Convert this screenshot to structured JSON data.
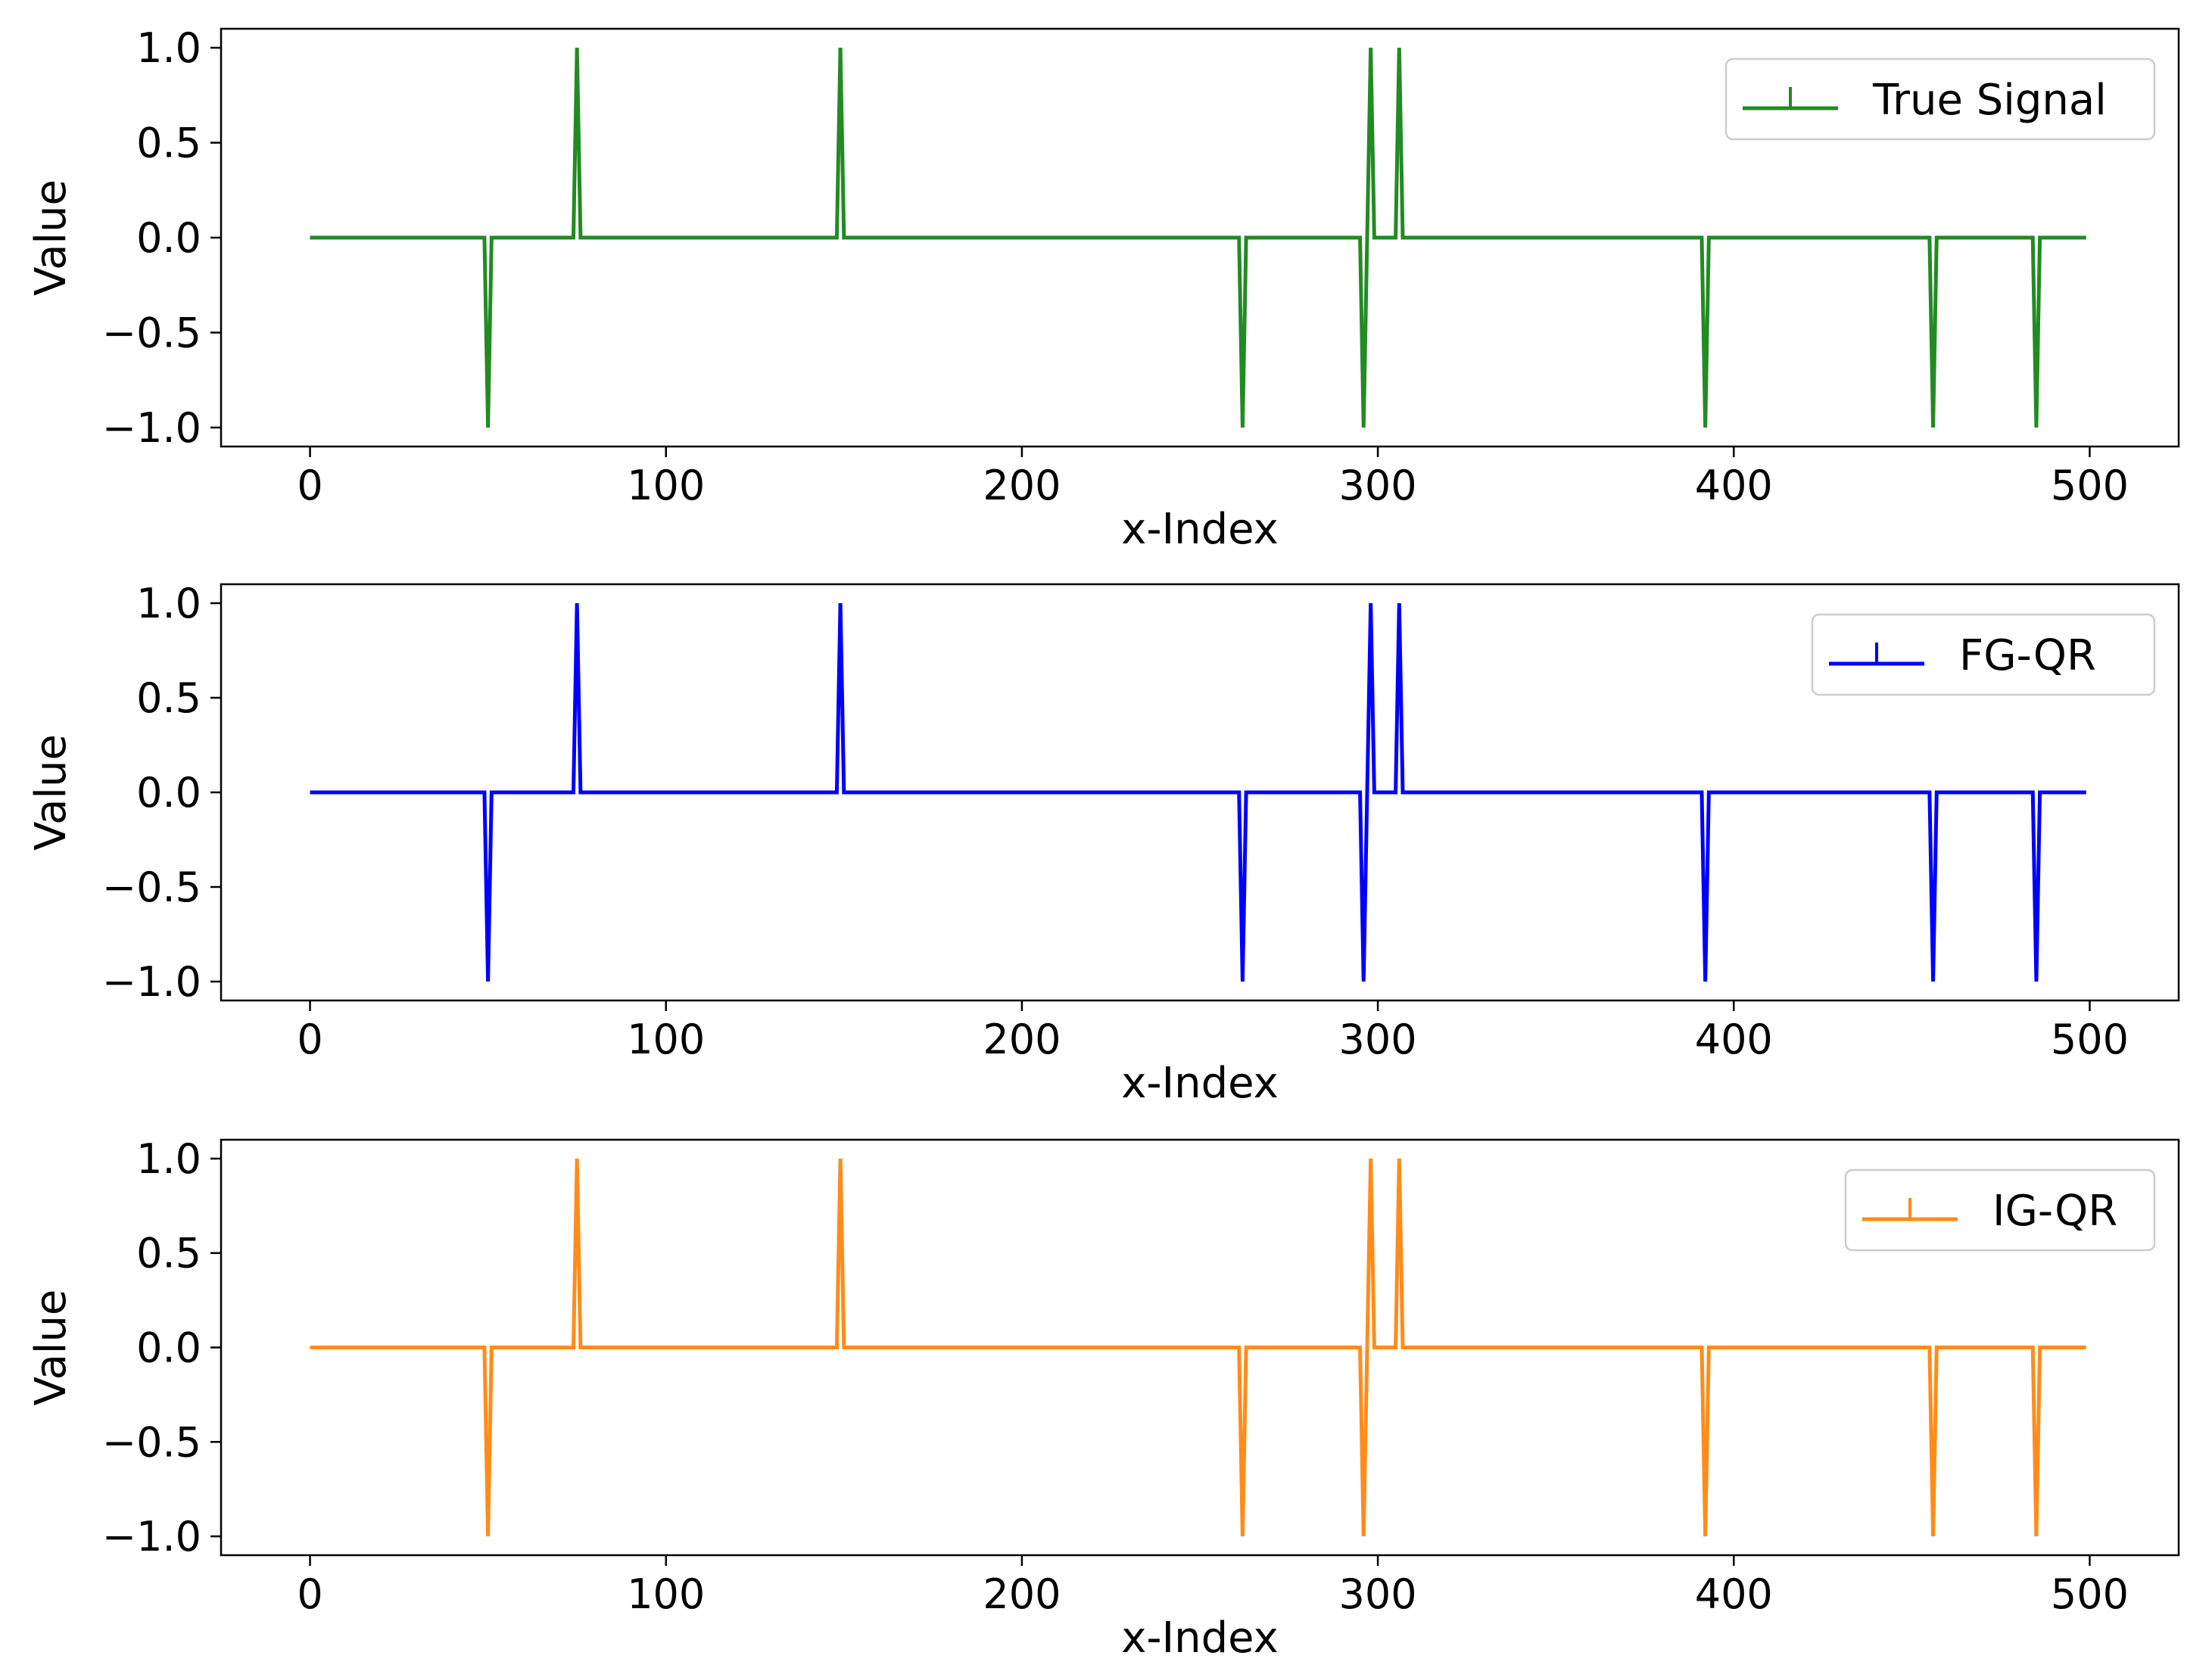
{
  "chart_data": [
    {
      "type": "line",
      "title": "",
      "xlabel": "x-Index",
      "ylabel": "Value",
      "xlim": [
        -25,
        525
      ],
      "ylim": [
        -1.1,
        1.1
      ],
      "xticks": [
        0,
        100,
        200,
        300,
        400,
        500
      ],
      "xtick_labels": [
        "0",
        "100",
        "200",
        "300",
        "400",
        "500"
      ],
      "yticks": [
        1.0,
        0.5,
        0.0,
        -0.5,
        -1.0
      ],
      "ytick_labels": [
        "1.0",
        "0.5",
        "0.0",
        "−0.5",
        "−1.0"
      ],
      "grid": false,
      "legend_position": "upper right",
      "series": [
        {
          "name": "True Signal",
          "color": "#228b22",
          "x_range": [
            0,
            499
          ],
          "spikes": [
            {
              "x": 50,
              "y": -1
            },
            {
              "x": 75,
              "y": 1
            },
            {
              "x": 149,
              "y": 1
            },
            {
              "x": 262,
              "y": -1
            },
            {
              "x": 296,
              "y": -1
            },
            {
              "x": 298,
              "y": 1
            },
            {
              "x": 306,
              "y": 1
            },
            {
              "x": 392,
              "y": -1
            },
            {
              "x": 456,
              "y": -1
            },
            {
              "x": 485,
              "y": -1
            }
          ]
        }
      ]
    },
    {
      "type": "line",
      "title": "",
      "xlabel": "x-Index",
      "ylabel": "Value",
      "xlim": [
        -25,
        525
      ],
      "ylim": [
        -1.1,
        1.1
      ],
      "xticks": [
        0,
        100,
        200,
        300,
        400,
        500
      ],
      "xtick_labels": [
        "0",
        "100",
        "200",
        "300",
        "400",
        "500"
      ],
      "yticks": [
        1.0,
        0.5,
        0.0,
        -0.5,
        -1.0
      ],
      "ytick_labels": [
        "1.0",
        "0.5",
        "0.0",
        "−0.5",
        "−1.0"
      ],
      "grid": false,
      "legend_position": "upper right",
      "series": [
        {
          "name": "FG-QR",
          "color": "#0000ff",
          "x_range": [
            0,
            499
          ],
          "spikes": [
            {
              "x": 50,
              "y": -1
            },
            {
              "x": 75,
              "y": 1
            },
            {
              "x": 149,
              "y": 1
            },
            {
              "x": 262,
              "y": -1
            },
            {
              "x": 296,
              "y": -1
            },
            {
              "x": 298,
              "y": 1
            },
            {
              "x": 306,
              "y": 1
            },
            {
              "x": 392,
              "y": -1
            },
            {
              "x": 456,
              "y": -1
            },
            {
              "x": 485,
              "y": -1
            }
          ]
        }
      ]
    },
    {
      "type": "line",
      "title": "",
      "xlabel": "x-Index",
      "ylabel": "Value",
      "xlim": [
        -25,
        525
      ],
      "ylim": [
        -1.1,
        1.1
      ],
      "xticks": [
        0,
        100,
        200,
        300,
        400,
        500
      ],
      "xtick_labels": [
        "0",
        "100",
        "200",
        "300",
        "400",
        "500"
      ],
      "yticks": [
        1.0,
        0.5,
        0.0,
        -0.5,
        -1.0
      ],
      "ytick_labels": [
        "1.0",
        "0.5",
        "0.0",
        "−0.5",
        "−1.0"
      ],
      "grid": false,
      "legend_position": "upper right",
      "series": [
        {
          "name": "IG-QR",
          "color": "#ff8c1a",
          "x_range": [
            0,
            499
          ],
          "spikes": [
            {
              "x": 50,
              "y": -1
            },
            {
              "x": 75,
              "y": 1
            },
            {
              "x": 149,
              "y": 1
            },
            {
              "x": 262,
              "y": -1
            },
            {
              "x": 296,
              "y": -1
            },
            {
              "x": 298,
              "y": 1
            },
            {
              "x": 306,
              "y": 1
            },
            {
              "x": 392,
              "y": -1
            },
            {
              "x": 456,
              "y": -1
            },
            {
              "x": 485,
              "y": -1
            }
          ]
        }
      ]
    }
  ]
}
